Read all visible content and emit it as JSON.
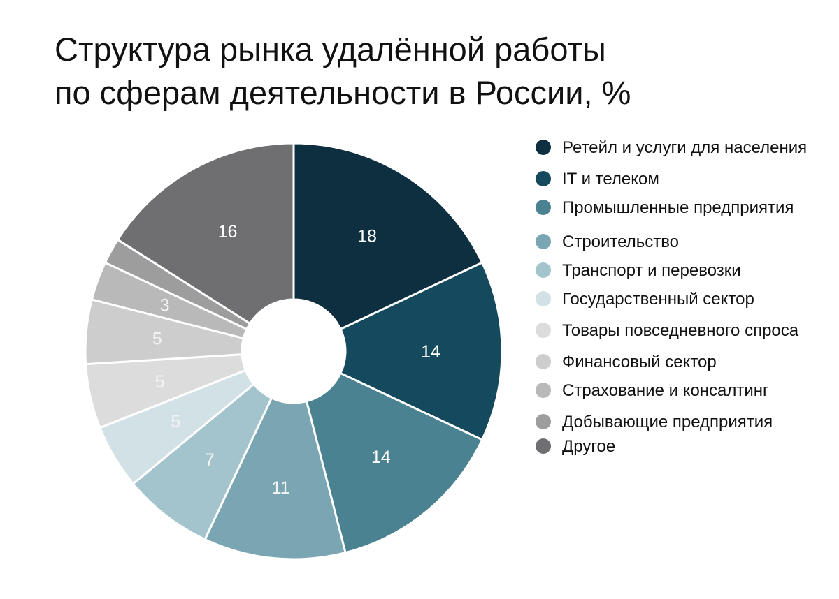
{
  "title": {
    "line1": "Структура рынка удалённой работы",
    "line2": "по сферам деятельности в России, %"
  },
  "chart_data": {
    "type": "pie",
    "variant": "donut",
    "unit": "%",
    "legend_position": "right",
    "series": [
      {
        "name": "Ретейл и услуги для населения",
        "value": 18,
        "label": "18",
        "color": "#0e2f40"
      },
      {
        "name": "IT и телеком",
        "value": 14,
        "label": "14",
        "color": "#154a5e"
      },
      {
        "name": "Промышленные предприятия",
        "value": 14,
        "label": "14",
        "color": "#4a8292"
      },
      {
        "name": "Строительство",
        "value": 11,
        "label": "11",
        "color": "#79a6b2"
      },
      {
        "name": "Транспорт и перевозки",
        "value": 7,
        "label": "7",
        "color": "#a3c4cc"
      },
      {
        "name": "Государственный сектор",
        "value": 5,
        "label": "5",
        "color": "#d2e1e5"
      },
      {
        "name": "Товары повседневного спроса",
        "value": 5,
        "label": "5",
        "color": "#dcdcdc"
      },
      {
        "name": "Финансовый сектор",
        "value": 5,
        "label": "5",
        "color": "#cdcdcd"
      },
      {
        "name": "Страхование и консалтинг",
        "value": 3,
        "label": "3",
        "color": "#b9b9b9"
      },
      {
        "name": "Добывающие предприятия",
        "value": 2,
        "label": "",
        "color": "#9d9d9d"
      },
      {
        "name": "Другое",
        "value": 16,
        "label": "16",
        "color": "#6f6f72"
      }
    ]
  }
}
